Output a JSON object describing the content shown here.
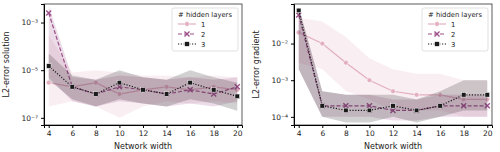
{
  "chart_data": [
    {
      "type": "line",
      "x_label": "Network width",
      "y_label": "L2-error solution",
      "x": [
        4,
        6,
        8,
        10,
        12,
        14,
        16,
        18,
        20
      ],
      "xlim": [
        3.6,
        20.4
      ],
      "xticks": [
        4,
        6,
        8,
        10,
        12,
        14,
        16,
        18,
        20
      ],
      "ylim": [
        5e-08,
        0.006
      ],
      "yticks": [
        {
          "value": 1e-07,
          "label": "10⁻⁷"
        },
        {
          "value": 1e-05,
          "label": "10⁻⁵"
        },
        {
          "value": 0.001,
          "label": "10⁻³"
        }
      ],
      "log": "y",
      "grid": false,
      "legend": "upper right",
      "legend_title": "# hidden layers",
      "series": [
        {
          "name": "1",
          "color": "#e3aebf",
          "marker": "circle",
          "line_style": "solid",
          "values": [
            3e-06,
            2e-06,
            3e-06,
            1e-06,
            1.5e-06,
            2e-06,
            1.5e-06,
            2e-06,
            1.5e-06
          ],
          "lower": [
            3e-07,
            5e-07,
            3e-07,
            1e-07,
            3e-07,
            5e-07,
            4e-07,
            5e-07,
            4e-07
          ],
          "upper": [
            0.0003,
            8e-06,
            1e-05,
            8e-06,
            6e-06,
            6e-06,
            5e-06,
            6e-06,
            5e-06
          ]
        },
        {
          "name": "2",
          "color": "#9c4f8a",
          "marker": "x",
          "line_style": "dashed",
          "values": [
            0.0025,
            2e-06,
            1e-06,
            2e-06,
            1.5e-06,
            1e-06,
            1.5e-06,
            1e-06,
            2e-06
          ],
          "lower": [
            5e-06,
            5e-07,
            3e-07,
            5e-07,
            4e-07,
            3e-07,
            4e-07,
            3e-07,
            5e-07
          ],
          "upper": [
            0.005,
            5e-06,
            4e-06,
            6e-06,
            5e-06,
            4e-06,
            5e-06,
            4e-06,
            5e-06
          ]
        },
        {
          "name": "3",
          "color": "#1a1a1a",
          "marker": "square",
          "line_style": "dotted",
          "values": [
            1.5e-05,
            2e-06,
            1e-06,
            3e-06,
            1.5e-06,
            1e-06,
            3e-06,
            1.5e-06,
            8e-07
          ],
          "lower": [
            4e-06,
            6e-07,
            3e-07,
            6e-07,
            4e-07,
            3e-07,
            6e-07,
            4e-07,
            2e-07
          ],
          "upper": [
            5e-05,
            6e-06,
            4e-06,
            1e-05,
            5e-06,
            4e-06,
            1e-05,
            5e-06,
            3e-06
          ]
        }
      ]
    },
    {
      "type": "line",
      "x_label": "Network width",
      "y_label": "L2-error gradient",
      "x": [
        4,
        6,
        8,
        10,
        12,
        14,
        16,
        18,
        20
      ],
      "xlim": [
        3.6,
        20.4
      ],
      "xticks": [
        4,
        6,
        8,
        10,
        12,
        14,
        16,
        18,
        20
      ],
      "ylim": [
        6e-05,
        0.12
      ],
      "yticks": [
        {
          "value": 0.0001,
          "label": "10⁻⁴"
        },
        {
          "value": 0.001,
          "label": "10⁻³"
        },
        {
          "value": 0.01,
          "label": "10⁻²"
        }
      ],
      "log": "y",
      "grid": false,
      "legend": "upper right",
      "legend_title": "# hidden layers",
      "series": [
        {
          "name": "1",
          "color": "#e3aebf",
          "marker": "circle",
          "line_style": "solid",
          "values": [
            0.02,
            0.01,
            0.003,
            0.001,
            0.0005,
            0.0004,
            0.0004,
            0.0003,
            0.0003
          ],
          "lower": [
            0.003,
            0.002,
            0.0005,
            0.0003,
            0.00015,
            0.00015,
            0.00015,
            0.0001,
            0.0001
          ],
          "upper": [
            0.05,
            0.04,
            0.015,
            0.004,
            0.002,
            0.0015,
            0.0015,
            0.001,
            0.001
          ]
        },
        {
          "name": "2",
          "color": "#9c4f8a",
          "marker": "x",
          "line_style": "dashed",
          "values": [
            0.06,
            0.0002,
            0.0002,
            0.0002,
            0.00015,
            0.00015,
            0.0002,
            0.0002,
            0.0002
          ],
          "lower": [
            0.002,
            0.0001,
            0.0001,
            0.0001,
            8e-05,
            8e-05,
            0.0001,
            0.0001,
            0.0001
          ],
          "upper": [
            0.1,
            0.0005,
            0.0004,
            0.0004,
            0.0003,
            0.0003,
            0.0004,
            0.0004,
            0.0004
          ]
        },
        {
          "name": "3",
          "color": "#1a1a1a",
          "marker": "square",
          "line_style": "dotted",
          "values": [
            0.08,
            0.0002,
            0.00015,
            0.00015,
            0.0002,
            0.00015,
            0.0002,
            0.0004,
            0.0004
          ],
          "lower": [
            0.002,
            0.0001,
            7e-05,
            7e-05,
            0.0001,
            7e-05,
            0.0001,
            0.00015,
            0.00015
          ],
          "upper": [
            0.1,
            0.0005,
            0.0004,
            0.0004,
            0.0004,
            0.0003,
            0.0005,
            0.001,
            0.001
          ]
        }
      ]
    }
  ]
}
